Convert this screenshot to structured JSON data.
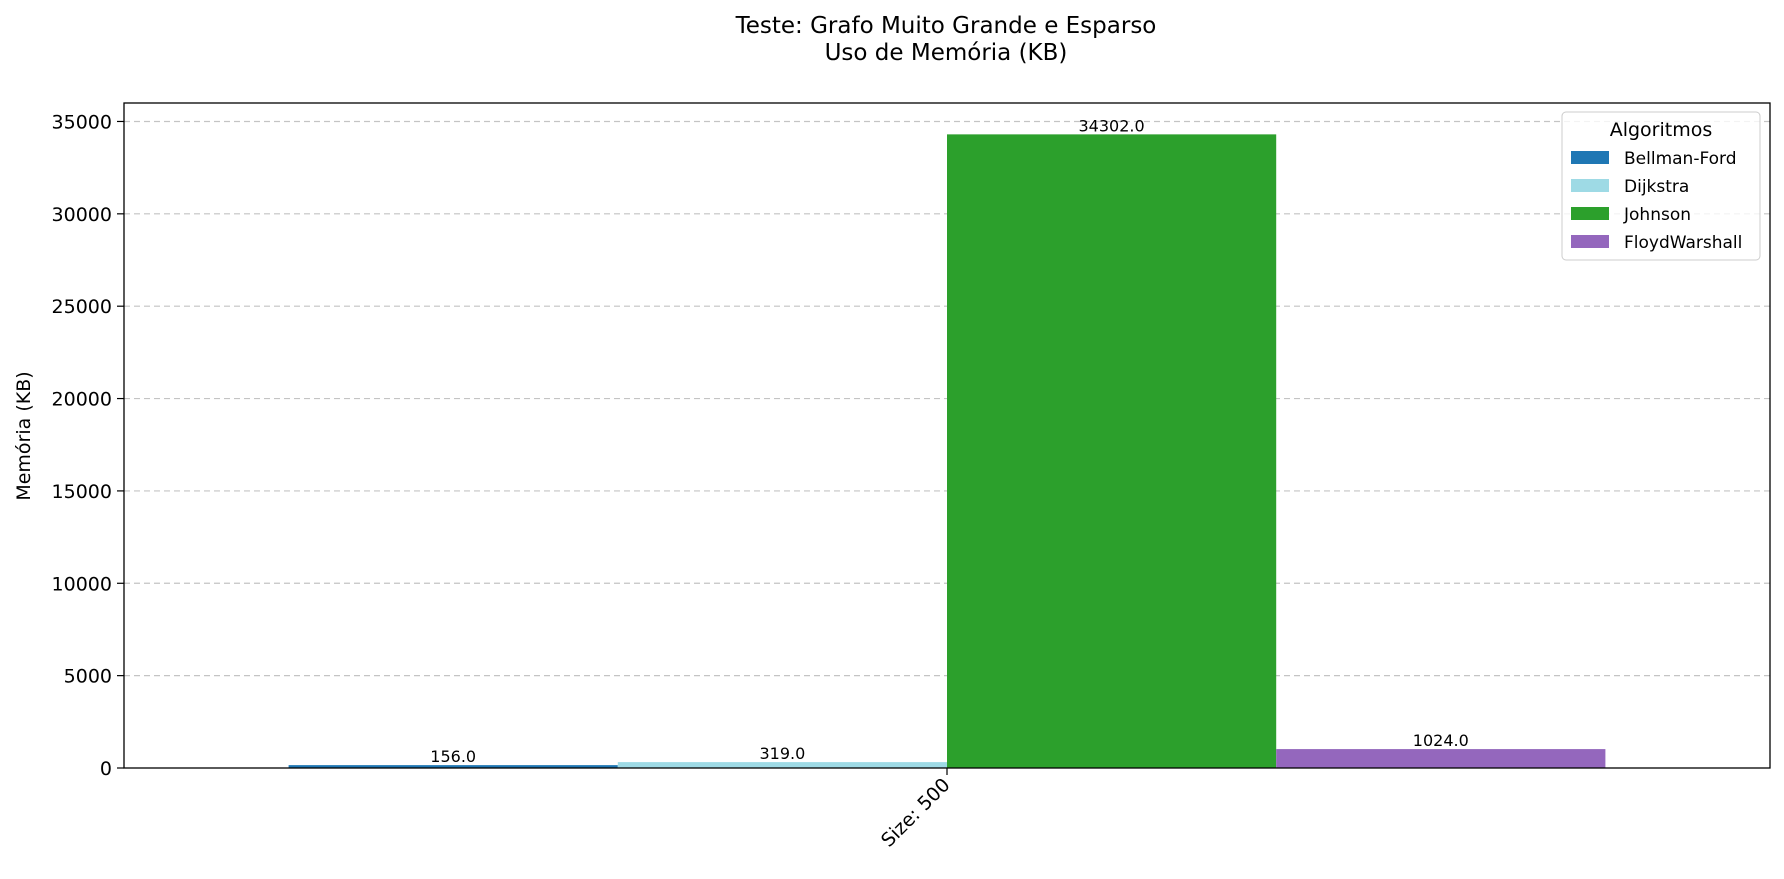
{
  "chart_data": {
    "type": "bar",
    "title": "Teste: Grafo Muito Grande e Esparso",
    "subtitle": "Uso de Memória (KB)",
    "xlabel": "",
    "ylabel": "Memória (KB)",
    "categories": [
      "Size: 500"
    ],
    "series": [
      {
        "name": "Bellman-Ford",
        "values": [
          156.0
        ],
        "value_labels": [
          "156.0"
        ],
        "color": "#1f77b4"
      },
      {
        "name": "Dijkstra",
        "values": [
          319.0
        ],
        "value_labels": [
          "319.0"
        ],
        "color": "#9edae5"
      },
      {
        "name": "Johnson",
        "values": [
          34302.0
        ],
        "value_labels": [
          "34302.0"
        ],
        "color": "#2ca02c"
      },
      {
        "name": "FloydWarshall",
        "values": [
          1024.0
        ],
        "value_labels": [
          "1024.0"
        ],
        "color": "#9467bd"
      }
    ],
    "ylim": [
      0,
      36000
    ],
    "yticks": [
      0,
      5000,
      10000,
      15000,
      20000,
      25000,
      30000,
      35000
    ],
    "grid": "y-dashed",
    "legend": {
      "title": "Algoritmos",
      "placement": "top-right"
    }
  }
}
